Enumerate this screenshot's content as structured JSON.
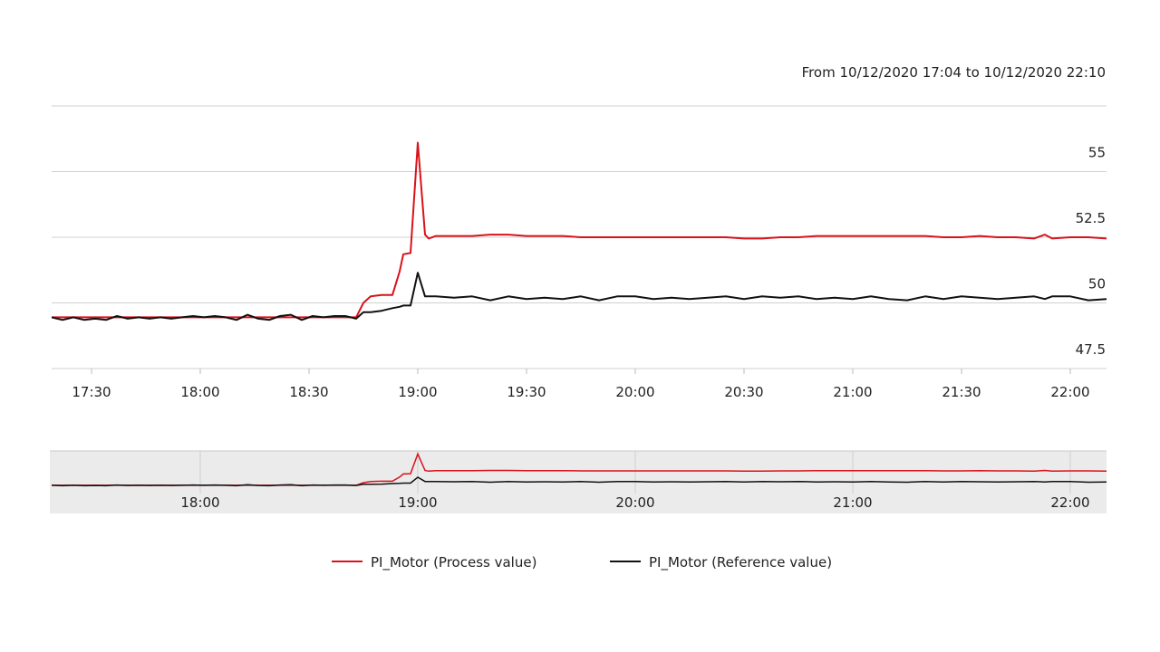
{
  "chart_data": {
    "type": "line",
    "range_label": "From 10/12/2020 17:04  to 10/12/2020 22:10",
    "x": [
      "17:19",
      "17:22",
      "17:25",
      "17:28",
      "17:31",
      "17:34",
      "17:37",
      "17:40",
      "17:43",
      "17:46",
      "17:49",
      "17:52",
      "17:55",
      "17:58",
      "18:01",
      "18:04",
      "18:07",
      "18:10",
      "18:13",
      "18:16",
      "18:19",
      "18:22",
      "18:25",
      "18:28",
      "18:31",
      "18:34",
      "18:37",
      "18:40",
      "18:43",
      "18:45",
      "18:47",
      "18:50",
      "18:53",
      "18:55",
      "18:56",
      "18:58",
      "19:00",
      "19:02",
      "19:03",
      "19:05",
      "19:10",
      "19:15",
      "19:20",
      "19:25",
      "19:30",
      "19:35",
      "19:40",
      "19:45",
      "19:50",
      "19:55",
      "20:00",
      "20:05",
      "20:10",
      "20:15",
      "20:20",
      "20:25",
      "20:30",
      "20:35",
      "20:40",
      "20:45",
      "20:50",
      "20:55",
      "21:00",
      "21:05",
      "21:10",
      "21:15",
      "21:20",
      "21:25",
      "21:30",
      "21:35",
      "21:40",
      "21:45",
      "21:50",
      "21:53",
      "21:55",
      "22:00",
      "22:05",
      "22:10"
    ],
    "series": [
      {
        "name": "PI_Motor (Process value)",
        "color": "#d9121b",
        "values": [
          49.45,
          49.45,
          49.45,
          49.45,
          49.45,
          49.45,
          49.45,
          49.45,
          49.45,
          49.45,
          49.45,
          49.45,
          49.45,
          49.45,
          49.45,
          49.45,
          49.45,
          49.45,
          49.45,
          49.45,
          49.45,
          49.45,
          49.45,
          49.45,
          49.45,
          49.45,
          49.45,
          49.45,
          49.45,
          50.0,
          50.25,
          50.3,
          50.3,
          51.2,
          51.85,
          51.9,
          56.1,
          52.6,
          52.45,
          52.55,
          52.55,
          52.55,
          52.6,
          52.6,
          52.55,
          52.55,
          52.55,
          52.5,
          52.5,
          52.5,
          52.5,
          52.5,
          52.5,
          52.5,
          52.5,
          52.5,
          52.45,
          52.45,
          52.5,
          52.5,
          52.55,
          52.55,
          52.55,
          52.55,
          52.55,
          52.55,
          52.55,
          52.5,
          52.5,
          52.55,
          52.5,
          52.5,
          52.45,
          52.6,
          52.45,
          52.5,
          52.5,
          52.45
        ]
      },
      {
        "name": "PI_Motor (Reference value)",
        "color": "#111111",
        "values": [
          49.45,
          49.35,
          49.45,
          49.35,
          49.4,
          49.35,
          49.5,
          49.4,
          49.45,
          49.4,
          49.45,
          49.4,
          49.45,
          49.5,
          49.45,
          49.5,
          49.45,
          49.35,
          49.55,
          49.4,
          49.35,
          49.5,
          49.55,
          49.35,
          49.5,
          49.45,
          49.5,
          49.5,
          49.4,
          49.65,
          49.65,
          49.7,
          49.8,
          49.85,
          49.9,
          49.9,
          51.15,
          50.25,
          50.25,
          50.25,
          50.2,
          50.25,
          50.1,
          50.25,
          50.15,
          50.2,
          50.15,
          50.25,
          50.1,
          50.25,
          50.25,
          50.15,
          50.2,
          50.15,
          50.2,
          50.25,
          50.15,
          50.25,
          50.2,
          50.25,
          50.15,
          50.2,
          50.15,
          50.25,
          50.15,
          50.1,
          50.25,
          50.15,
          50.25,
          50.2,
          50.15,
          50.2,
          50.25,
          50.15,
          50.25,
          50.25,
          50.1,
          50.15
        ]
      }
    ],
    "xlim": [
      "17:19",
      "22:10"
    ],
    "xticks": [
      "17:30",
      "18:00",
      "18:30",
      "19:00",
      "19:30",
      "20:00",
      "20:30",
      "21:00",
      "21:30",
      "22:00"
    ],
    "ylim": [
      47.5,
      57.5
    ],
    "yticks": [
      47.5,
      50,
      52.5,
      55
    ],
    "navigator_xticks": [
      "18:00",
      "19:00",
      "20:00",
      "21:00",
      "22:00"
    ],
    "grid": true,
    "legend": "bottom"
  }
}
